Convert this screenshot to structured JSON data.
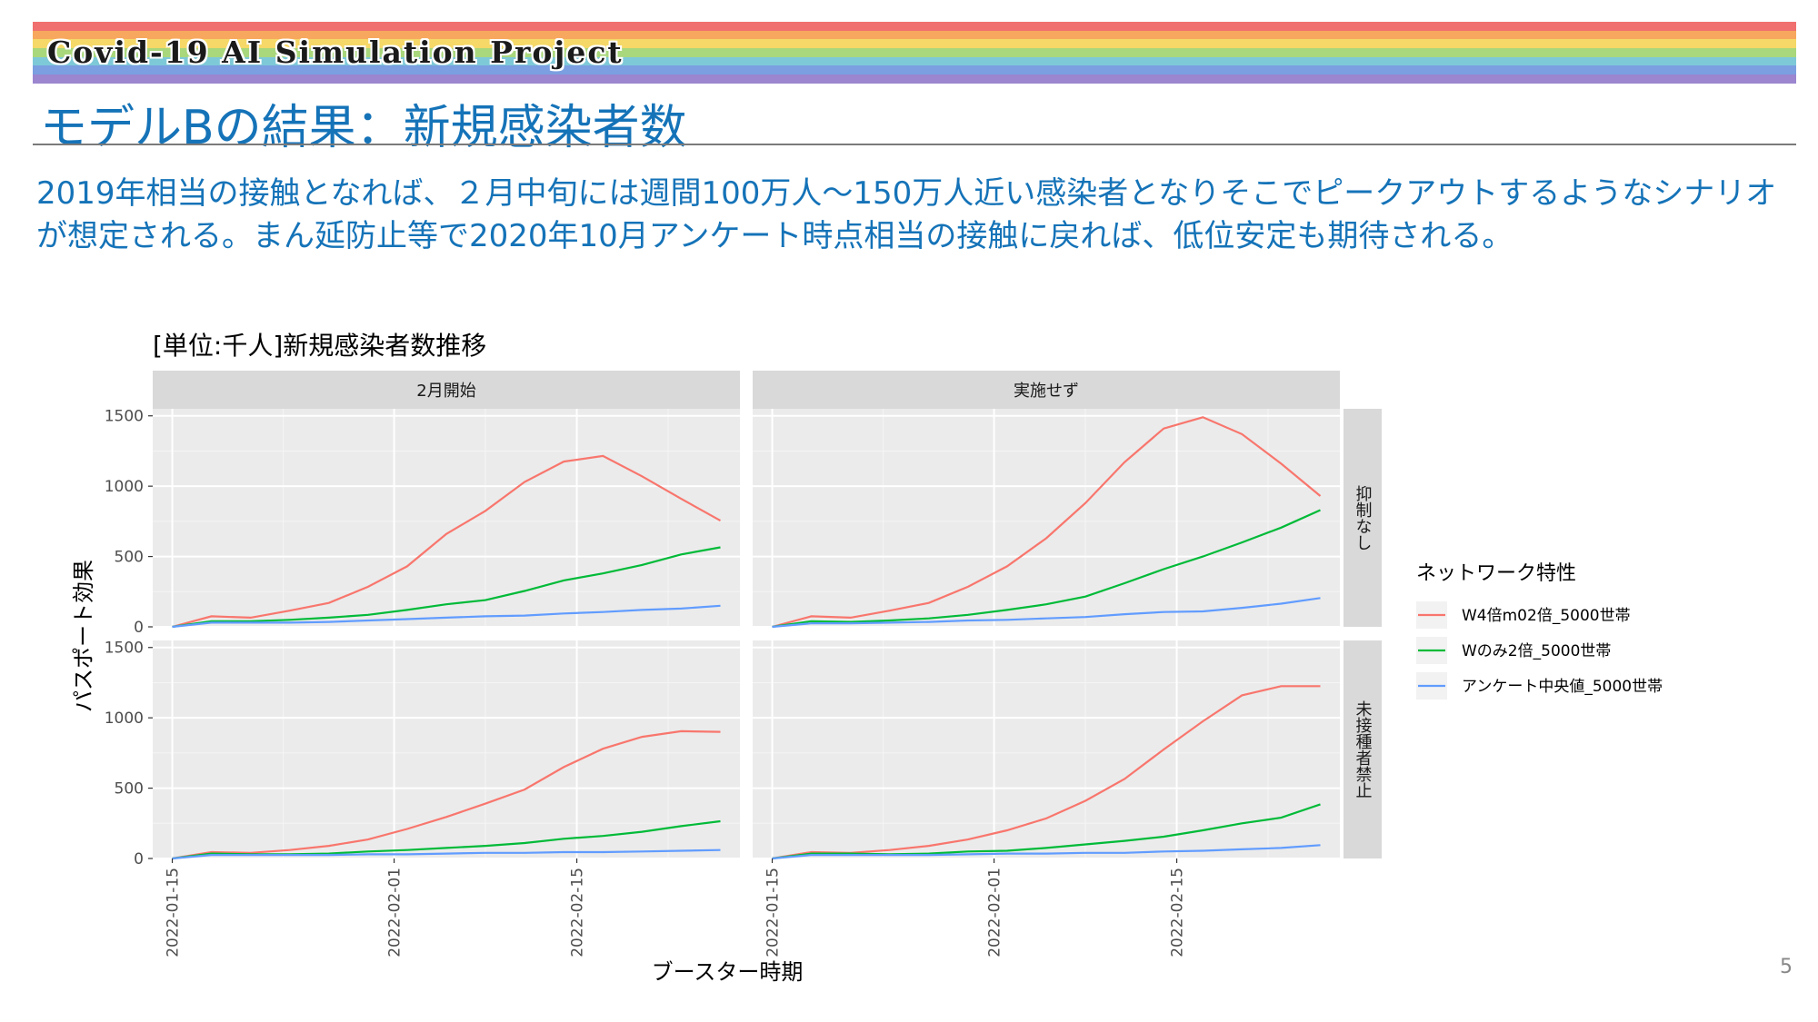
{
  "banner": {
    "title": "Covid-19 AI Simulation Project",
    "stripe_colors": [
      "#f0706f",
      "#f7a85e",
      "#f5d867",
      "#a9d77c",
      "#7ec9d8",
      "#7b9fe0",
      "#9b86cf"
    ]
  },
  "page_title": "モデルBの結果：新規感染者数",
  "summary_text": "2019年相当の接触となれば、２月中旬には週間100万人～150万人近い感染者となりそこでピークアウトするようなシナリオが想定される。まん延防止等で2020年10月アンケート時点相当の接触に戻れば、低位安定も期待される。",
  "page_number": "5",
  "chart_data": {
    "type": "line",
    "title": "[単位:千人]新規感染者数推移",
    "xlabel": "ブースター時期",
    "ylabel": "パスポート効果",
    "facet_columns": [
      "2月開始",
      "実施せず"
    ],
    "facet_rows": [
      "抑制なし",
      "未接種者禁止"
    ],
    "x_ticks": [
      "2022-01-15",
      "2022-02-01",
      "2022-02-15"
    ],
    "y_ticks": [
      0,
      500,
      1000,
      1500
    ],
    "ylim": [
      0,
      1550
    ],
    "grid": true,
    "legend_title": "ネットワーク特性",
    "legend_position": "right",
    "series": [
      {
        "name": "W4倍m02倍_5000世帯",
        "color": "#f8766d"
      },
      {
        "name": "Wのみ2倍_5000世帯",
        "color": "#00ba38"
      },
      {
        "name": "アンケート中央値_5000世帯",
        "color": "#619cff"
      }
    ],
    "x": [
      "2022-01-15",
      "2022-01-18",
      "2022-01-21",
      "2022-01-24",
      "2022-01-27",
      "2022-01-30",
      "2022-02-02",
      "2022-02-05",
      "2022-02-08",
      "2022-02-11",
      "2022-02-14",
      "2022-02-17",
      "2022-02-20",
      "2022-02-23",
      "2022-02-26"
    ],
    "panels": [
      {
        "col": "2月開始",
        "row": "抑制なし",
        "values": [
          [
            0,
            75,
            65,
            115,
            170,
            285,
            430,
            660,
            825,
            1030,
            1175,
            1215,
            1070,
            910,
            755
          ],
          [
            0,
            40,
            40,
            50,
            65,
            85,
            120,
            160,
            190,
            255,
            330,
            380,
            440,
            515,
            565
          ],
          [
            0,
            30,
            30,
            30,
            35,
            45,
            55,
            65,
            75,
            80,
            95,
            105,
            120,
            130,
            150
          ]
        ]
      },
      {
        "col": "実施せず",
        "row": "抑制なし",
        "values": [
          [
            0,
            75,
            65,
            115,
            170,
            285,
            430,
            630,
            880,
            1170,
            1410,
            1490,
            1370,
            1160,
            930
          ],
          [
            0,
            40,
            35,
            45,
            60,
            85,
            120,
            160,
            215,
            310,
            410,
            500,
            600,
            705,
            830
          ],
          [
            0,
            25,
            25,
            30,
            35,
            45,
            50,
            60,
            70,
            90,
            105,
            110,
            135,
            165,
            205
          ]
        ]
      },
      {
        "col": "2月開始",
        "row": "未接種者禁止",
        "values": [
          [
            0,
            45,
            40,
            60,
            90,
            135,
            210,
            295,
            390,
            490,
            650,
            780,
            865,
            905,
            900
          ],
          [
            0,
            35,
            30,
            30,
            35,
            50,
            60,
            75,
            90,
            110,
            140,
            160,
            190,
            230,
            265
          ],
          [
            0,
            25,
            25,
            25,
            25,
            30,
            30,
            35,
            40,
            40,
            45,
            45,
            50,
            55,
            60
          ]
        ]
      },
      {
        "col": "実施せず",
        "row": "未接種者禁止",
        "values": [
          [
            0,
            45,
            40,
            60,
            90,
            135,
            200,
            285,
            410,
            565,
            775,
            975,
            1160,
            1225,
            1225
          ],
          [
            0,
            35,
            35,
            30,
            35,
            50,
            55,
            75,
            100,
            125,
            155,
            200,
            250,
            290,
            385
          ],
          [
            0,
            25,
            25,
            25,
            25,
            30,
            35,
            35,
            40,
            40,
            50,
            55,
            65,
            75,
            95
          ]
        ]
      }
    ]
  }
}
